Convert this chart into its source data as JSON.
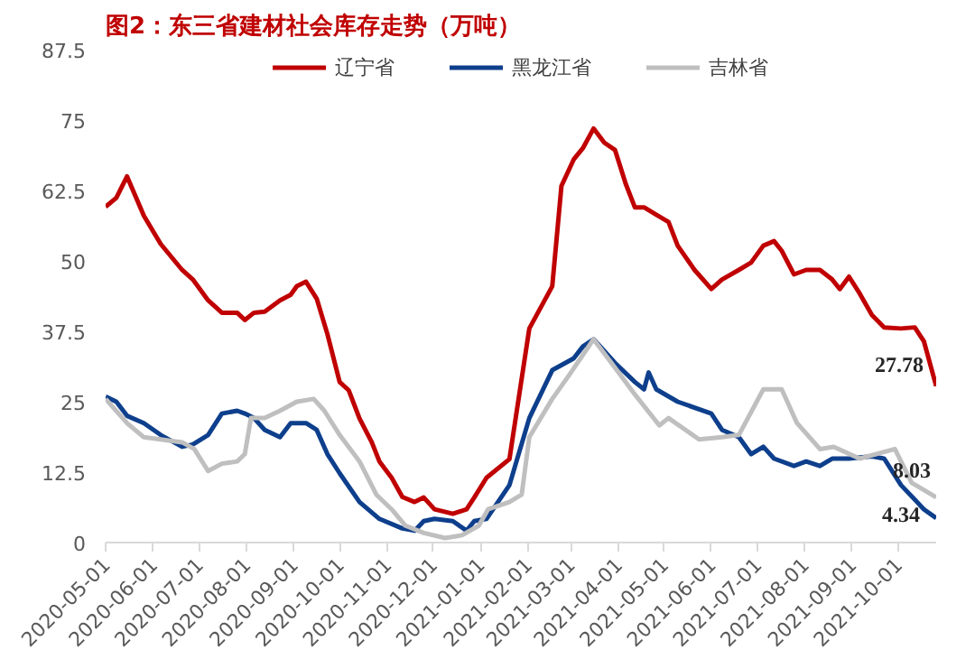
{
  "chart_data": {
    "type": "line",
    "title": "图2：东三省建材社会库存走势（万吨）",
    "xlim": [
      "2020-05-01",
      "2021-10-26"
    ],
    "xticks": [
      "2020-05-01",
      "2020-06-01",
      "2020-07-01",
      "2020-08-01",
      "2020-09-01",
      "2020-10-01",
      "2020-11-01",
      "2020-12-01",
      "2021-01-01",
      "2021-02-01",
      "2021-03-01",
      "2021-04-01",
      "2021-05-01",
      "2021-06-01",
      "2021-07-01",
      "2021-08-01",
      "2021-09-01",
      "2021-10-01"
    ],
    "ylim": [
      0,
      87.5
    ],
    "yticks": [
      0,
      12.5,
      25,
      37.5,
      50,
      62.5,
      75,
      87.5
    ],
    "grid": false,
    "legend": "top",
    "marker": "none",
    "line_style": "solid",
    "series": [
      {
        "name": "辽宁省",
        "color": "#c00000",
        "x": [
          "2020-05-01",
          "2020-05-08",
          "2020-05-15",
          "2020-05-26",
          "2020-06-06",
          "2020-06-20",
          "2020-06-27",
          "2020-07-07",
          "2020-07-16",
          "2020-07-26",
          "2020-07-31",
          "2020-08-06",
          "2020-08-13",
          "2020-08-23",
          "2020-08-30",
          "2020-09-03",
          "2020-09-09",
          "2020-09-16",
          "2020-09-23",
          "2020-10-01",
          "2020-10-07",
          "2020-10-14",
          "2020-10-22",
          "2020-10-27",
          "2020-11-04",
          "2020-11-11",
          "2020-11-19",
          "2020-11-25",
          "2020-12-02",
          "2020-12-14",
          "2020-12-23",
          "2020-12-28",
          "2021-01-05",
          "2021-01-20",
          "2021-02-02",
          "2021-02-17",
          "2021-02-23",
          "2021-03-03",
          "2021-03-09",
          "2021-03-16",
          "2021-03-23",
          "2021-03-30",
          "2021-04-06",
          "2021-04-12",
          "2021-04-18",
          "2021-04-26",
          "2021-05-04",
          "2021-05-10",
          "2021-05-21",
          "2021-06-01",
          "2021-06-08",
          "2021-06-19",
          "2021-06-27",
          "2021-07-05",
          "2021-07-12",
          "2021-07-17",
          "2021-07-25",
          "2021-08-02",
          "2021-08-11",
          "2021-08-19",
          "2021-08-24",
          "2021-08-30",
          "2021-09-06",
          "2021-09-14",
          "2021-09-22",
          "2021-10-03",
          "2021-10-12",
          "2021-10-18",
          "2021-10-26"
        ],
        "values": [
          59.6,
          61.2,
          65,
          58,
          53,
          48.4,
          46.7,
          43,
          40.8,
          40.8,
          39.5,
          40.8,
          41,
          43,
          44,
          45.5,
          46.3,
          43.3,
          37,
          28.5,
          27,
          22,
          17.8,
          14.4,
          11.5,
          8.1,
          7.2,
          8,
          5.9,
          5.1,
          5.9,
          8,
          11.5,
          14.8,
          38,
          45.5,
          63.3,
          68,
          70,
          73.5,
          71,
          69.7,
          63.7,
          59.5,
          59.5,
          58.2,
          56.9,
          52.7,
          48.4,
          45,
          46.7,
          48.4,
          49.7,
          52.7,
          53.5,
          51.8,
          47.6,
          48.4,
          48.4,
          46.7,
          45,
          47.2,
          44.2,
          40.4,
          38.2,
          38,
          38.2,
          35.7,
          27.78
        ]
      },
      {
        "name": "黑龙江省",
        "color": "#0e3f8c",
        "x": [
          "2020-05-01",
          "2020-05-08",
          "2020-05-15",
          "2020-05-26",
          "2020-06-06",
          "2020-06-20",
          "2020-06-27",
          "2020-07-07",
          "2020-07-16",
          "2020-07-26",
          "2020-07-31",
          "2020-08-06",
          "2020-08-13",
          "2020-08-23",
          "2020-08-30",
          "2020-09-09",
          "2020-09-16",
          "2020-09-23",
          "2020-10-01",
          "2020-10-14",
          "2020-10-27",
          "2020-11-11",
          "2020-11-19",
          "2020-11-25",
          "2020-12-02",
          "2020-12-14",
          "2020-12-23",
          "2020-12-28",
          "2021-01-05",
          "2021-01-20",
          "2021-02-02",
          "2021-02-17",
          "2021-03-03",
          "2021-03-09",
          "2021-03-16",
          "2021-03-30",
          "2021-04-12",
          "2021-04-18",
          "2021-04-21",
          "2021-04-26",
          "2021-05-10",
          "2021-06-01",
          "2021-06-08",
          "2021-06-19",
          "2021-06-27",
          "2021-07-05",
          "2021-07-12",
          "2021-07-25",
          "2021-08-02",
          "2021-08-11",
          "2021-08-19",
          "2021-08-30",
          "2021-09-14",
          "2021-09-22",
          "2021-10-03",
          "2021-10-18",
          "2021-10-26"
        ],
        "values": [
          25.9,
          25,
          22.5,
          21.2,
          19.1,
          17,
          17.4,
          19.1,
          22.9,
          23.4,
          22.9,
          22.1,
          20,
          18.7,
          21.2,
          21.2,
          20,
          15.7,
          12.3,
          7.2,
          4.2,
          2.5,
          2.1,
          3.8,
          4.2,
          3.8,
          2.1,
          3.8,
          4.2,
          10.2,
          22.1,
          30.6,
          32.7,
          34.8,
          36.1,
          31.9,
          28.5,
          27.2,
          30.2,
          27.2,
          25,
          22.9,
          20,
          18.7,
          15.7,
          17,
          14.9,
          13.6,
          14.4,
          13.6,
          14.9,
          14.9,
          15.3,
          14.9,
          10.2,
          5.9,
          4.34
        ]
      },
      {
        "name": "吉林省",
        "color": "#bfbfbf",
        "x": [
          "2020-05-01",
          "2020-05-15",
          "2020-05-26",
          "2020-06-20",
          "2020-06-28",
          "2020-07-07",
          "2020-07-16",
          "2020-07-26",
          "2020-07-31",
          "2020-08-04",
          "2020-08-13",
          "2020-08-23",
          "2020-09-03",
          "2020-09-14",
          "2020-09-21",
          "2020-10-01",
          "2020-10-14",
          "2020-10-25",
          "2020-11-04",
          "2020-11-13",
          "2020-11-25",
          "2020-12-09",
          "2020-12-20",
          "2020-12-31",
          "2021-01-06",
          "2021-01-20",
          "2021-01-28",
          "2021-02-02",
          "2021-02-17",
          "2021-02-28",
          "2021-03-16",
          "2021-03-29",
          "2021-04-12",
          "2021-04-28",
          "2021-05-04",
          "2021-05-24",
          "2021-06-08",
          "2021-06-19",
          "2021-07-05",
          "2021-07-17",
          "2021-07-27",
          "2021-08-11",
          "2021-08-20",
          "2021-09-06",
          "2021-09-29",
          "2021-10-10",
          "2021-10-26"
        ],
        "values": [
          25.5,
          21.2,
          18.7,
          17.8,
          16.6,
          12.7,
          14,
          14.4,
          15.7,
          22.1,
          22.1,
          23.4,
          25,
          25.5,
          23.4,
          19.1,
          14.4,
          8.5,
          5.9,
          3,
          1.7,
          0.8,
          1.3,
          3,
          5.9,
          7.2,
          8.5,
          18.7,
          25.5,
          29.7,
          36.1,
          31.4,
          26.3,
          20.8,
          22.1,
          18.3,
          18.7,
          19.1,
          27.2,
          27.2,
          21.2,
          16.6,
          17,
          14.9,
          16.6,
          10.6,
          8.03
        ]
      }
    ],
    "annotations": [
      {
        "text": "27.78",
        "x": "2021-10-26",
        "y": 27.78
      },
      {
        "text": "8.03",
        "x": "2021-10-26",
        "y": 8.03
      },
      {
        "text": "4.34",
        "x": "2021-10-26",
        "y": 4.34
      }
    ]
  }
}
